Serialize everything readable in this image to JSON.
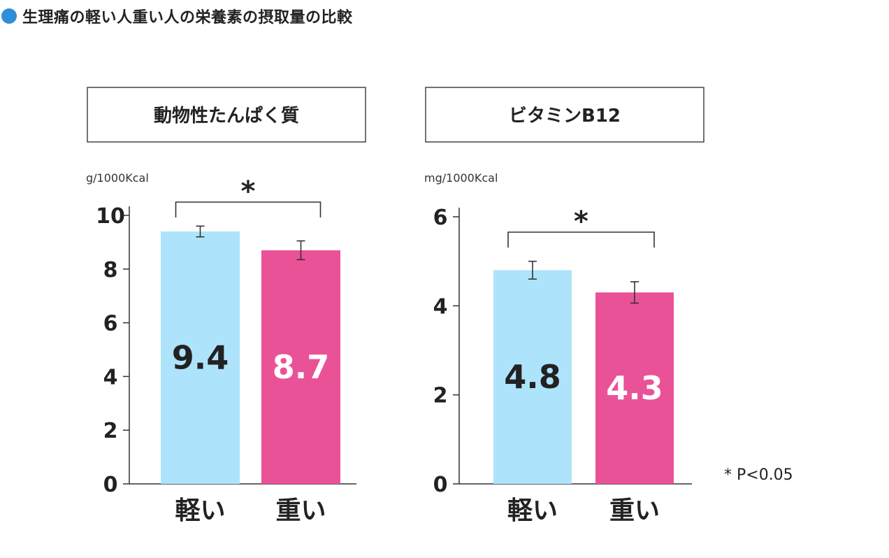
{
  "title": "生理痛の軽い人重い人の栄養素の摂取量の比較",
  "colors": {
    "accent": "#2e8fd8",
    "light": "#aee4fb",
    "heavy": "#ea5298",
    "axis": "#333333"
  },
  "note": "* P<0.05",
  "chart_data": [
    {
      "type": "bar",
      "title": "動物性たんぱく質",
      "ylabel": "g/1000Kcal",
      "ylim": [
        0,
        10
      ],
      "yticks": [
        0,
        2,
        4,
        6,
        8,
        10
      ],
      "categories": [
        "軽い",
        "重い"
      ],
      "values": [
        9.4,
        8.7
      ],
      "value_labels": [
        "9.4",
        "8.7"
      ],
      "error": [
        0.2,
        0.35
      ],
      "significance": "*"
    },
    {
      "type": "bar",
      "title": "ビタミンB12",
      "ylabel": "mg/1000Kcal",
      "ylim": [
        0,
        6
      ],
      "yticks": [
        0,
        2,
        4,
        6
      ],
      "categories": [
        "軽い",
        "重い"
      ],
      "values": [
        4.8,
        4.3
      ],
      "value_labels": [
        "4.8",
        "4.3"
      ],
      "error": [
        0.2,
        0.24
      ],
      "significance": "*"
    }
  ]
}
